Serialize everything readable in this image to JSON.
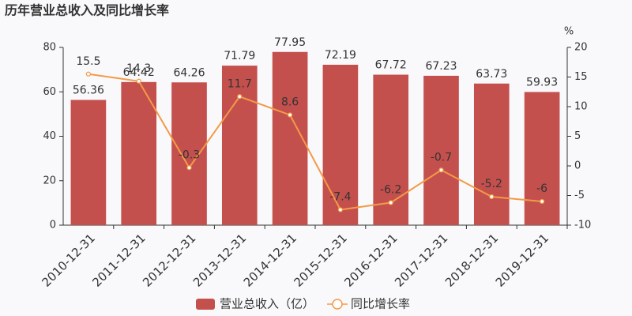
{
  "chart_data": {
    "type": "bar_line",
    "title": "历年营业总收入及同比增长率",
    "y2_label": "%",
    "categories": [
      "2010-12-31",
      "2011-12-31",
      "2012-12-31",
      "2013-12-31",
      "2014-12-31",
      "2015-12-31",
      "2016-12-31",
      "2017-12-31",
      "2018-12-31",
      "2019-12-31"
    ],
    "series": [
      {
        "name": "营业总收入（亿）",
        "type": "bar",
        "color": "#c4504e",
        "values": [
          56.36,
          64.42,
          64.26,
          71.79,
          77.95,
          72.19,
          67.72,
          67.23,
          63.73,
          59.93
        ]
      },
      {
        "name": "同比增长率",
        "type": "line",
        "axis": "y2",
        "color": "#f39a47",
        "values": [
          15.5,
          14.3,
          -0.3,
          11.7,
          8.6,
          -7.4,
          -6.2,
          -0.7,
          -5.2,
          -6
        ]
      }
    ],
    "ylim": [
      0,
      80
    ],
    "yticks": [
      0,
      20,
      40,
      60,
      80
    ],
    "y2lim": [
      -10,
      20
    ],
    "y2ticks": [
      -10,
      -5,
      0,
      5,
      10,
      15,
      20
    ]
  }
}
